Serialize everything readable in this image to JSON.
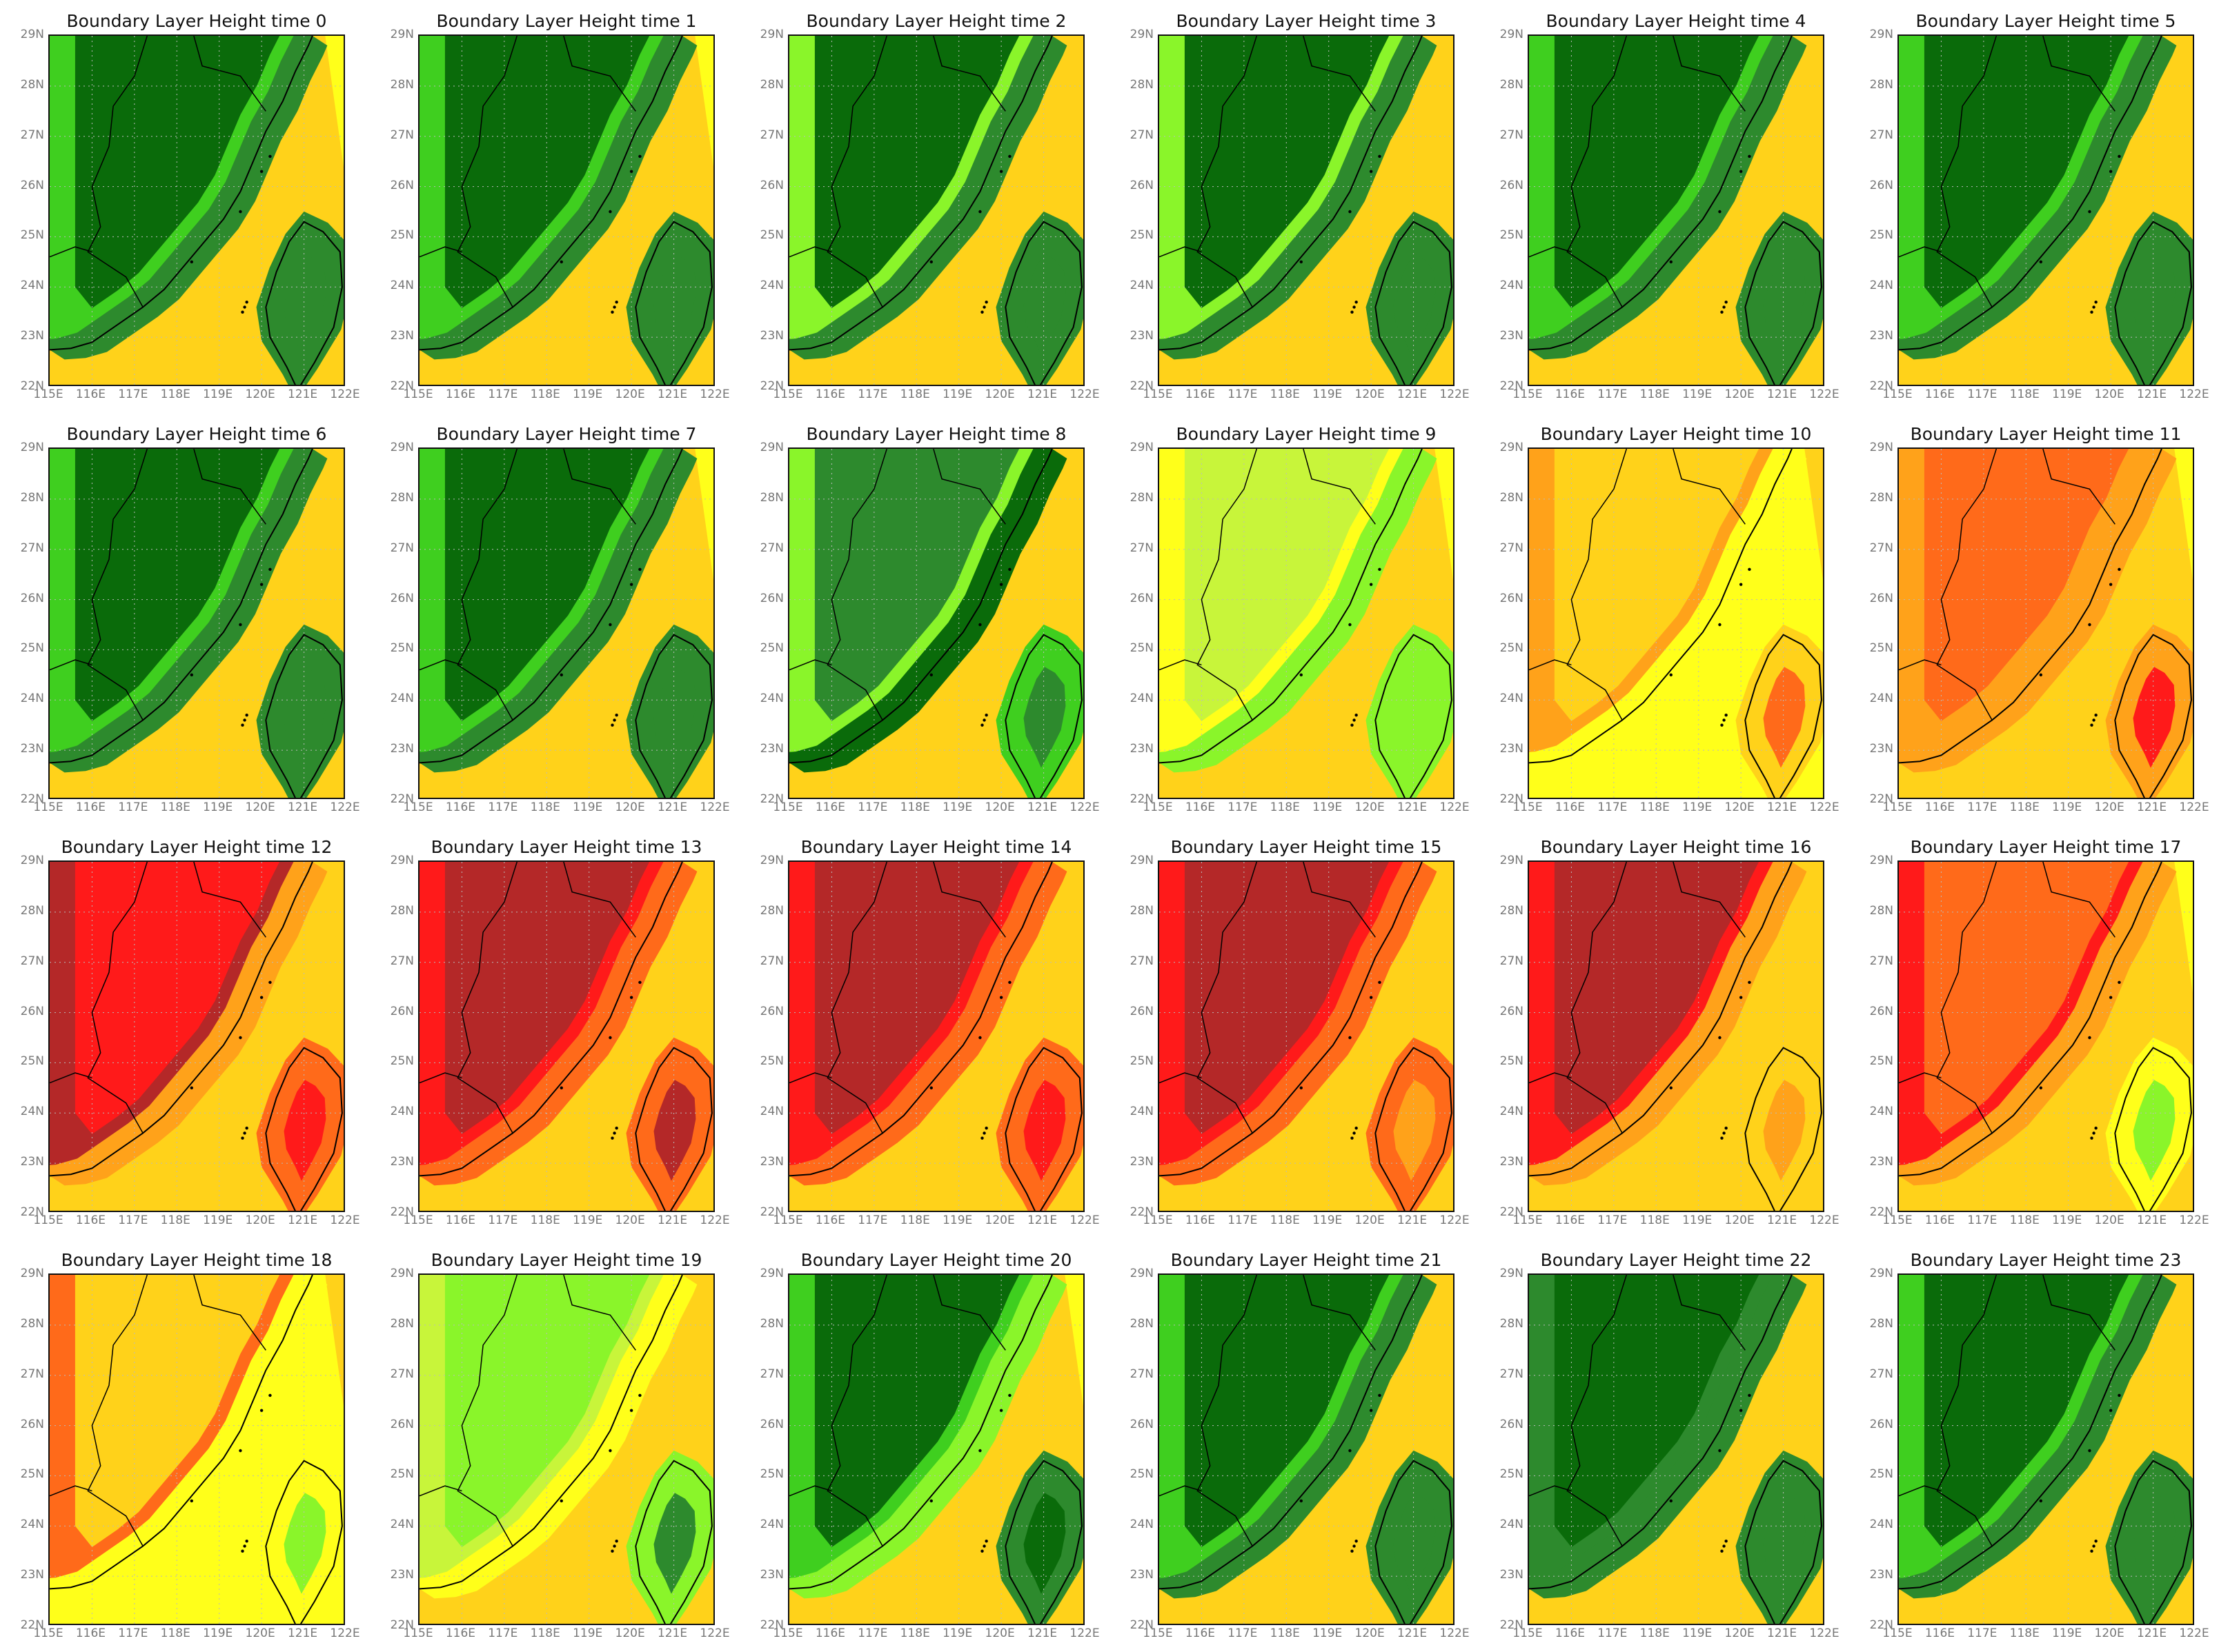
{
  "colors": {
    "dark_green": "#0a6b0a",
    "forest": "#2d8a2d",
    "green": "#3fcf1f",
    "lime": "#8af52a",
    "yellow_green": "#c8f53a",
    "yellow": "#ffff1a",
    "gold": "#ffd21a",
    "orange": "#ffa21a",
    "orange_red": "#ff6a1a",
    "red": "#ff1a1a",
    "dark_red": "#b42828",
    "maroon": "#800000"
  },
  "axis": {
    "lat_labels": [
      "29N",
      "28N",
      "27N",
      "26N",
      "25N",
      "24N",
      "23N",
      "22N"
    ],
    "lon_labels": [
      "115E",
      "116E",
      "117E",
      "118E",
      "119E",
      "120E",
      "121E",
      "122E"
    ],
    "lat_range": [
      22,
      29
    ],
    "lon_range": [
      115,
      122
    ]
  },
  "panels": [
    {
      "title": "Boundary Layer Height time 0",
      "levels": {
        "land": "dark_green",
        "land_edge": "green",
        "coast": "forest",
        "sea_near": "gold",
        "sea_far": "yellow",
        "taiwan": "forest",
        "taiwan_core": "forest"
      }
    },
    {
      "title": "Boundary Layer Height time 1",
      "levels": {
        "land": "dark_green",
        "land_edge": "green",
        "coast": "forest",
        "sea_near": "gold",
        "sea_far": "yellow",
        "taiwan": "forest",
        "taiwan_core": "forest"
      }
    },
    {
      "title": "Boundary Layer Height time 2",
      "levels": {
        "land": "dark_green",
        "land_edge": "lime",
        "coast": "forest",
        "sea_near": "gold",
        "sea_far": "gold",
        "taiwan": "forest",
        "taiwan_core": "forest"
      }
    },
    {
      "title": "Boundary Layer Height time 3",
      "levels": {
        "land": "dark_green",
        "land_edge": "lime",
        "coast": "forest",
        "sea_near": "gold",
        "sea_far": "gold",
        "taiwan": "forest",
        "taiwan_core": "forest"
      }
    },
    {
      "title": "Boundary Layer Height time 4",
      "levels": {
        "land": "dark_green",
        "land_edge": "green",
        "coast": "forest",
        "sea_near": "gold",
        "sea_far": "gold",
        "taiwan": "forest",
        "taiwan_core": "forest"
      }
    },
    {
      "title": "Boundary Layer Height time 5",
      "levels": {
        "land": "dark_green",
        "land_edge": "green",
        "coast": "forest",
        "sea_near": "gold",
        "sea_far": "gold",
        "taiwan": "forest",
        "taiwan_core": "forest"
      }
    },
    {
      "title": "Boundary Layer Height time 6",
      "levels": {
        "land": "dark_green",
        "land_edge": "green",
        "coast": "forest",
        "sea_near": "gold",
        "sea_far": "gold",
        "taiwan": "forest",
        "taiwan_core": "forest"
      }
    },
    {
      "title": "Boundary Layer Height time 7",
      "levels": {
        "land": "dark_green",
        "land_edge": "green",
        "coast": "forest",
        "sea_near": "gold",
        "sea_far": "yellow",
        "taiwan": "forest",
        "taiwan_core": "forest"
      }
    },
    {
      "title": "Boundary Layer Height time 8",
      "levels": {
        "land": "forest",
        "land_edge": "lime",
        "coast": "dark_green",
        "sea_near": "gold",
        "sea_far": "gold",
        "taiwan": "green",
        "taiwan_core": "forest"
      }
    },
    {
      "title": "Boundary Layer Height time 9",
      "levels": {
        "land": "yellow_green",
        "land_edge": "yellow",
        "coast": "lime",
        "sea_near": "gold",
        "sea_far": "yellow",
        "taiwan": "lime",
        "taiwan_core": "lime"
      }
    },
    {
      "title": "Boundary Layer Height time 10",
      "levels": {
        "land": "gold",
        "land_edge": "orange",
        "coast": "yellow",
        "sea_near": "yellow",
        "sea_far": "gold",
        "taiwan": "gold",
        "taiwan_core": "orange_red"
      }
    },
    {
      "title": "Boundary Layer Height time 11",
      "levels": {
        "land": "orange_red",
        "land_edge": "orange",
        "coast": "orange",
        "sea_near": "gold",
        "sea_far": "yellow",
        "taiwan": "orange",
        "taiwan_core": "red"
      }
    },
    {
      "title": "Boundary Layer Height time 12",
      "levels": {
        "land": "red",
        "land_edge": "dark_red",
        "coast": "orange",
        "sea_near": "gold",
        "sea_far": "gold",
        "taiwan": "orange_red",
        "taiwan_core": "red"
      }
    },
    {
      "title": "Boundary Layer Height time 13",
      "levels": {
        "land": "dark_red",
        "land_edge": "red",
        "coast": "orange_red",
        "sea_near": "gold",
        "sea_far": "gold",
        "taiwan": "orange_red",
        "taiwan_core": "dark_red"
      }
    },
    {
      "title": "Boundary Layer Height time 14",
      "levels": {
        "land": "dark_red",
        "land_edge": "red",
        "coast": "orange_red",
        "sea_near": "gold",
        "sea_far": "gold",
        "taiwan": "orange_red",
        "taiwan_core": "red"
      }
    },
    {
      "title": "Boundary Layer Height time 15",
      "levels": {
        "land": "dark_red",
        "land_edge": "red",
        "coast": "orange_red",
        "sea_near": "gold",
        "sea_far": "gold",
        "taiwan": "orange_red",
        "taiwan_core": "orange"
      }
    },
    {
      "title": "Boundary Layer Height time 16",
      "levels": {
        "land": "dark_red",
        "land_edge": "red",
        "coast": "orange",
        "sea_near": "gold",
        "sea_far": "gold",
        "taiwan": "gold",
        "taiwan_core": "orange"
      }
    },
    {
      "title": "Boundary Layer Height time 17",
      "levels": {
        "land": "orange_red",
        "land_edge": "red",
        "coast": "orange",
        "sea_near": "gold",
        "sea_far": "yellow",
        "taiwan": "yellow",
        "taiwan_core": "lime"
      }
    },
    {
      "title": "Boundary Layer Height time 18",
      "levels": {
        "land": "gold",
        "land_edge": "orange_red",
        "coast": "yellow",
        "sea_near": "yellow",
        "sea_far": "gold",
        "taiwan": "yellow",
        "taiwan_core": "lime"
      }
    },
    {
      "title": "Boundary Layer Height time 19",
      "levels": {
        "land": "lime",
        "land_edge": "yellow_green",
        "coast": "yellow",
        "sea_near": "gold",
        "sea_far": "gold",
        "taiwan": "lime",
        "taiwan_core": "forest"
      }
    },
    {
      "title": "Boundary Layer Height time 20",
      "levels": {
        "land": "dark_green",
        "land_edge": "green",
        "coast": "lime",
        "sea_near": "gold",
        "sea_far": "yellow",
        "taiwan": "forest",
        "taiwan_core": "dark_green"
      }
    },
    {
      "title": "Boundary Layer Height time 21",
      "levels": {
        "land": "dark_green",
        "land_edge": "green",
        "coast": "forest",
        "sea_near": "gold",
        "sea_far": "gold",
        "taiwan": "forest",
        "taiwan_core": "forest"
      }
    },
    {
      "title": "Boundary Layer Height time 22",
      "levels": {
        "land": "dark_green",
        "land_edge": "forest",
        "coast": "forest",
        "sea_near": "gold",
        "sea_far": "gold",
        "taiwan": "forest",
        "taiwan_core": "forest"
      }
    },
    {
      "title": "Boundary Layer Height time 23",
      "levels": {
        "land": "dark_green",
        "land_edge": "green",
        "coast": "forest",
        "sea_near": "gold",
        "sea_far": "gold",
        "taiwan": "forest",
        "taiwan_core": "forest"
      }
    }
  ]
}
